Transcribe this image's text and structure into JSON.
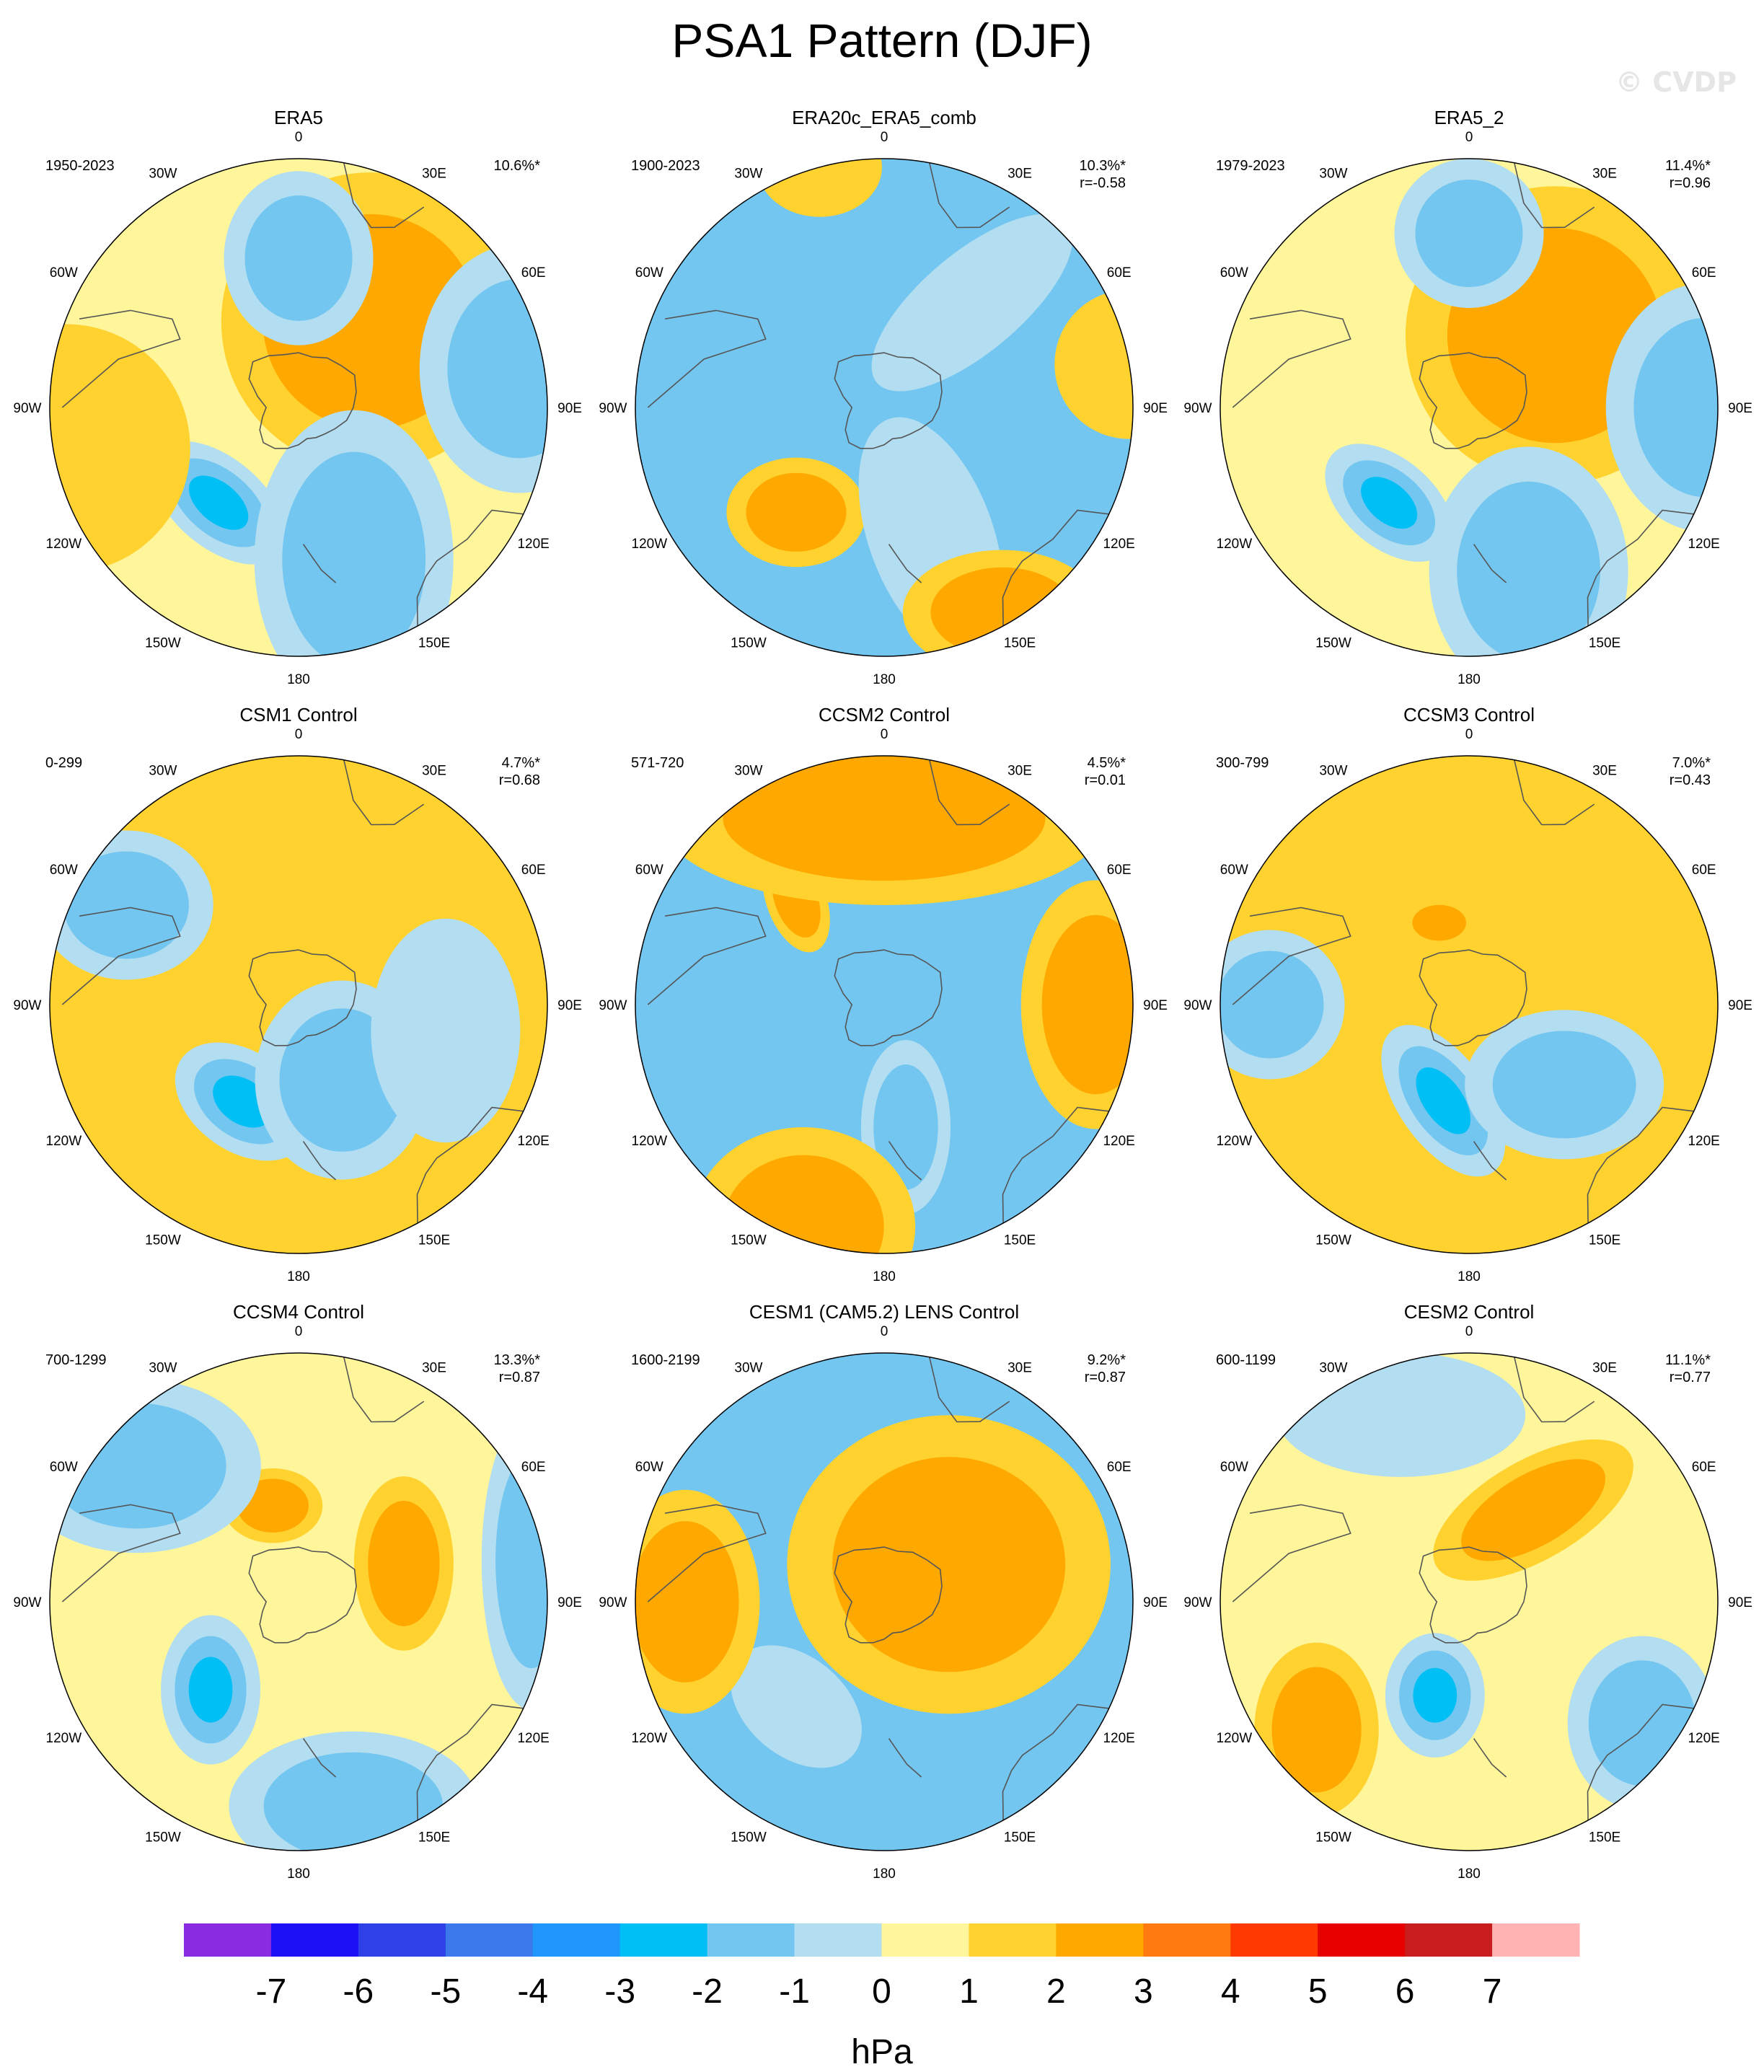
{
  "title": "PSA1 Pattern (DJF)",
  "watermark": "© CVDP",
  "colors": {
    "levels": [
      -7,
      -6,
      -5,
      -4,
      -3,
      -2,
      -1,
      0,
      1,
      2,
      3,
      4,
      5,
      6,
      7
    ],
    "fill": [
      "#8a2be2",
      "#1e10f5",
      "#2e40e8",
      "#3a78ec",
      "#1e96fa",
      "#00bff5",
      "#73c6f0",
      "#b3ddf0",
      "#fff59a",
      "#ffd22f",
      "#ffa800",
      "#ff7a10",
      "#ff3a00",
      "#e60000",
      "#c81e1e",
      "#ffb3b3"
    ],
    "coast": "#555555"
  },
  "lon_labels": [
    "0",
    "30E",
    "60E",
    "90E",
    "120E",
    "150E",
    "180",
    "150W",
    "120W",
    "90W",
    "60W",
    "30W"
  ],
  "colorbar": {
    "labels": [
      "-7",
      "-6",
      "-5",
      "-4",
      "-3",
      "-2",
      "-1",
      "0",
      "1",
      "2",
      "3",
      "4",
      "5",
      "6",
      "7"
    ],
    "unit": "hPa"
  },
  "chart_data": [
    {
      "type": "heatmap",
      "title": "ERA5",
      "years": "1950-2023",
      "pct": "10.6%*",
      "r": "",
      "base": 0,
      "blobs": [
        {
          "lon": 220,
          "dist": 0.5,
          "v": -3.3,
          "w": 0.32,
          "h": 0.18,
          "a": 40
        },
        {
          "lon": 40,
          "dist": 0.45,
          "v": 2.2,
          "w": 0.6,
          "h": 0.6,
          "a": 0
        },
        {
          "lon": 0,
          "dist": 0.6,
          "v": -2.5,
          "w": 0.3,
          "h": 0.35,
          "a": 0
        },
        {
          "lon": 160,
          "dist": 0.65,
          "v": -2.3,
          "w": 0.6,
          "h": 0.4,
          "a": 90
        },
        {
          "lon": 80,
          "dist": 0.9,
          "v": -2.4,
          "w": 0.4,
          "h": 0.5,
          "a": 0
        },
        {
          "lon": 260,
          "dist": 0.95,
          "v": 1.0,
          "w": 0.5,
          "h": 0.5,
          "a": 0
        }
      ]
    },
    {
      "type": "heatmap",
      "title": "ERA20c_ERA5_comb",
      "years": "1900-2023",
      "pct": "10.3%*",
      "r": "r=-0.58",
      "base": -1.2,
      "blobs": [
        {
          "lon": 220,
          "dist": 0.55,
          "v": 2.5,
          "w": 0.28,
          "h": 0.22,
          "a": 0
        },
        {
          "lon": 160,
          "dist": 0.55,
          "v": -1.8,
          "w": 0.5,
          "h": 0.25,
          "a": 70
        },
        {
          "lon": 40,
          "dist": 0.55,
          "v": -1.5,
          "w": 0.5,
          "h": 0.2,
          "a": -40
        },
        {
          "lon": 150,
          "dist": 0.95,
          "v": 2.5,
          "w": 0.4,
          "h": 0.25,
          "a": 0
        },
        {
          "lon": 80,
          "dist": 1.0,
          "v": 1.8,
          "w": 0.3,
          "h": 0.3,
          "a": 0
        },
        {
          "lon": 345,
          "dist": 1.0,
          "v": 1.6,
          "w": 0.25,
          "h": 0.2,
          "a": 0
        }
      ]
    },
    {
      "type": "heatmap",
      "title": "ERA5_2",
      "years": "1979-2023",
      "pct": "11.4%*",
      "r": "r=0.96",
      "base": 0,
      "blobs": [
        {
          "lon": 220,
          "dist": 0.5,
          "v": -3.2,
          "w": 0.3,
          "h": 0.18,
          "a": 40
        },
        {
          "lon": 50,
          "dist": 0.45,
          "v": 2.5,
          "w": 0.6,
          "h": 0.6,
          "a": 0
        },
        {
          "lon": 0,
          "dist": 0.7,
          "v": -2.0,
          "w": 0.3,
          "h": 0.3,
          "a": 0
        },
        {
          "lon": 160,
          "dist": 0.7,
          "v": -2.5,
          "w": 0.5,
          "h": 0.4,
          "a": 90
        },
        {
          "lon": 90,
          "dist": 0.95,
          "v": -2.2,
          "w": 0.4,
          "h": 0.5,
          "a": 0
        }
      ]
    },
    {
      "type": "heatmap",
      "title": "CSM1 Control",
      "years": "0-299",
      "pct": "4.7%*",
      "r": "r=0.68",
      "base": 1,
      "blobs": [
        {
          "lon": 210,
          "dist": 0.45,
          "v": -3.8,
          "w": 0.3,
          "h": 0.2,
          "a": 35
        },
        {
          "lon": 150,
          "dist": 0.35,
          "v": -2.0,
          "w": 0.35,
          "h": 0.4,
          "a": 0
        },
        {
          "lon": 100,
          "dist": 0.6,
          "v": -1.8,
          "w": 0.3,
          "h": 0.45,
          "a": 0
        },
        {
          "lon": 300,
          "dist": 0.8,
          "v": -2.0,
          "w": 0.35,
          "h": 0.3,
          "a": 0
        }
      ]
    },
    {
      "type": "heatmap",
      "title": "CCSM2 Control",
      "years": "571-720",
      "pct": "4.5%*",
      "r": "r=0.01",
      "base": -1.2,
      "blobs": [
        {
          "lon": 170,
          "dist": 0.5,
          "v": -2.2,
          "w": 0.35,
          "h": 0.18,
          "a": 90
        },
        {
          "lon": 320,
          "dist": 0.55,
          "v": 2.6,
          "w": 0.12,
          "h": 0.22,
          "a": -20
        },
        {
          "lon": 0,
          "dist": 0.75,
          "v": 2.5,
          "w": 0.9,
          "h": 0.35,
          "a": 0
        },
        {
          "lon": 90,
          "dist": 0.85,
          "v": 2.0,
          "w": 0.3,
          "h": 0.5,
          "a": 0
        },
        {
          "lon": 200,
          "dist": 0.95,
          "v": 2.0,
          "w": 0.45,
          "h": 0.4,
          "a": 0
        }
      ]
    },
    {
      "type": "heatmap",
      "title": "CCSM3 Control",
      "years": "300-799",
      "pct": "7.0%*",
      "r": "r=0.43",
      "base": 1,
      "blobs": [
        {
          "lon": 195,
          "dist": 0.4,
          "v": -3.5,
          "w": 0.35,
          "h": 0.18,
          "a": 55
        },
        {
          "lon": 130,
          "dist": 0.5,
          "v": -2.0,
          "w": 0.4,
          "h": 0.3,
          "a": 0
        },
        {
          "lon": 270,
          "dist": 0.8,
          "v": -2.0,
          "w": 0.3,
          "h": 0.3,
          "a": 0
        },
        {
          "lon": 340,
          "dist": 0.35,
          "v": 2.2,
          "w": 0.15,
          "h": 0.1,
          "a": 0
        }
      ]
    },
    {
      "type": "heatmap",
      "title": "CCSM4 Control",
      "years": "700-1299",
      "pct": "13.3%*",
      "r": "r=0.87",
      "base": 0.8,
      "blobs": [
        {
          "lon": 225,
          "dist": 0.5,
          "v": -3.3,
          "w": 0.2,
          "h": 0.3,
          "a": 0
        },
        {
          "lon": 70,
          "dist": 0.45,
          "v": 2.5,
          "w": 0.2,
          "h": 0.35,
          "a": 0
        },
        {
          "lon": 345,
          "dist": 0.4,
          "v": 2.2,
          "w": 0.2,
          "h": 0.15,
          "a": 0
        },
        {
          "lon": 80,
          "dist": 0.95,
          "v": -2.3,
          "w": 0.2,
          "h": 0.6,
          "a": 0
        },
        {
          "lon": 165,
          "dist": 0.85,
          "v": -2.0,
          "w": 0.5,
          "h": 0.3,
          "a": 0
        },
        {
          "lon": 310,
          "dist": 0.85,
          "v": -2.0,
          "w": 0.5,
          "h": 0.35,
          "a": 0
        }
      ]
    },
    {
      "type": "heatmap",
      "title": "CESM1 (CAM5.2) LENS Control",
      "years": "1600-2199",
      "pct": "9.2%*",
      "r": "r=0.87",
      "base": -1.3,
      "blobs": [
        {
          "lon": 220,
          "dist": 0.55,
          "v": -1.6,
          "w": 0.3,
          "h": 0.2,
          "a": 40
        },
        {
          "lon": 60,
          "dist": 0.3,
          "v": 2.8,
          "w": 0.65,
          "h": 0.6,
          "a": 0
        },
        {
          "lon": 270,
          "dist": 0.8,
          "v": 2.5,
          "w": 0.3,
          "h": 0.45,
          "a": 0
        }
      ]
    },
    {
      "type": "heatmap",
      "title": "CESM2 Control",
      "years": "600-1199",
      "pct": "11.1%*",
      "r": "r=0.77",
      "base": 0.5,
      "blobs": [
        {
          "lon": 200,
          "dist": 0.4,
          "v": -3.5,
          "w": 0.2,
          "h": 0.25,
          "a": 0
        },
        {
          "lon": 35,
          "dist": 0.45,
          "v": 2.4,
          "w": 0.45,
          "h": 0.2,
          "a": -30
        },
        {
          "lon": 230,
          "dist": 0.8,
          "v": 2.3,
          "w": 0.25,
          "h": 0.35,
          "a": 0
        },
        {
          "lon": 125,
          "dist": 0.85,
          "v": -2.3,
          "w": 0.3,
          "h": 0.35,
          "a": 0
        },
        {
          "lon": 340,
          "dist": 0.8,
          "v": -1.8,
          "w": 0.5,
          "h": 0.25,
          "a": 0
        }
      ]
    }
  ]
}
